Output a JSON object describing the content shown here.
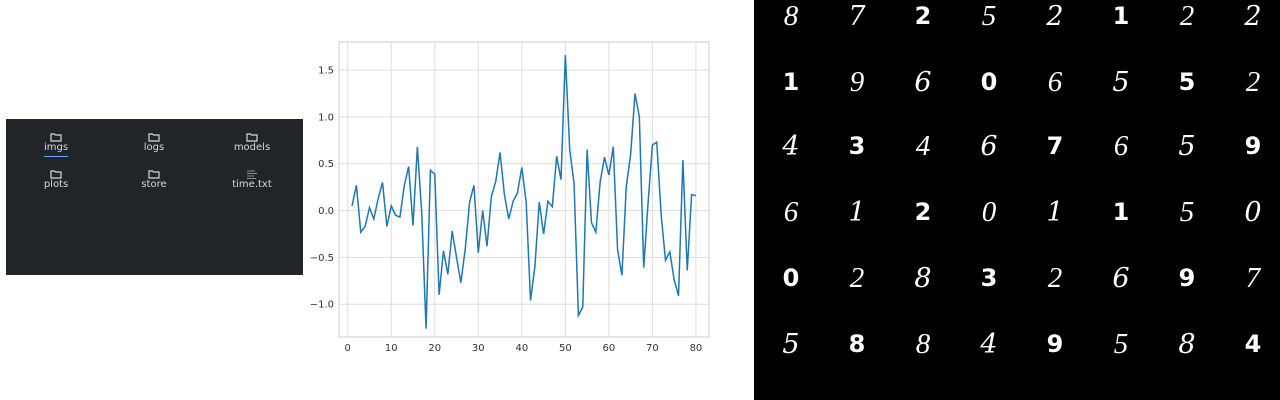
{
  "file_browser": {
    "items": [
      {
        "name": "imgs",
        "type": "folder",
        "icon": "folder-icon",
        "selected": true
      },
      {
        "name": "logs",
        "type": "folder",
        "icon": "folder-icon",
        "selected": false
      },
      {
        "name": "models",
        "type": "folder",
        "icon": "folder-icon",
        "selected": false
      },
      {
        "name": "plots",
        "type": "folder",
        "icon": "folder-icon",
        "selected": false
      },
      {
        "name": "store",
        "type": "folder",
        "icon": "folder-icon",
        "selected": false
      },
      {
        "name": "time.txt",
        "type": "file",
        "icon": "text-file-icon",
        "selected": false
      }
    ],
    "background": "#212529",
    "accent": "#6ea8fe"
  },
  "chart_data": {
    "type": "line",
    "x": [
      1,
      2,
      3,
      4,
      5,
      6,
      7,
      8,
      9,
      10,
      11,
      12,
      13,
      14,
      15,
      16,
      17,
      18,
      19,
      20,
      21,
      22,
      23,
      24,
      25,
      26,
      27,
      28,
      29,
      30,
      31,
      32,
      33,
      34,
      35,
      36,
      37,
      38,
      39,
      40,
      41,
      42,
      43,
      44,
      45,
      46,
      47,
      48,
      49,
      50,
      51,
      52,
      53,
      54,
      55,
      56,
      57,
      58,
      59,
      60,
      61,
      62,
      63,
      64,
      65,
      66,
      67,
      68,
      69,
      70,
      71,
      72,
      73,
      74,
      75,
      76,
      77,
      78,
      79,
      80
    ],
    "series": [
      {
        "values": [
          0.05,
          0.27,
          -0.23,
          -0.17,
          0.03,
          -0.09,
          0.13,
          0.3,
          -0.17,
          0.05,
          -0.05,
          -0.07,
          0.27,
          0.47,
          -0.16,
          0.68,
          -0.02,
          -1.26,
          0.43,
          0.39,
          -0.9,
          -0.43,
          -0.68,
          -0.22,
          -0.5,
          -0.77,
          -0.41,
          0.09,
          0.27,
          -0.45,
          0.0,
          -0.38,
          0.15,
          0.31,
          0.62,
          0.17,
          -0.09,
          0.1,
          0.19,
          0.46,
          0.09,
          -0.96,
          -0.6,
          0.09,
          -0.25,
          0.1,
          0.04,
          0.58,
          0.33,
          1.66,
          0.65,
          0.29,
          -1.12,
          -1.03,
          0.65,
          -0.13,
          -0.23,
          0.31,
          0.57,
          0.38,
          0.68,
          -0.42,
          -0.69,
          0.26,
          0.6,
          1.25,
          1.0,
          -0.61,
          0.08,
          0.7,
          0.73,
          -0.04,
          -0.53,
          -0.44,
          -0.74,
          -0.91,
          0.54,
          -0.64,
          0.17,
          0.16
        ],
        "color": "#1f77b4"
      }
    ],
    "title": "",
    "xlabel": "",
    "ylabel": "",
    "xlim": [
      -2,
      83
    ],
    "ylim": [
      -1.35,
      1.8
    ],
    "xticks": [
      0,
      10,
      20,
      30,
      40,
      50,
      60,
      70,
      80
    ],
    "yticks": [
      -1.0,
      -0.5,
      0.0,
      0.5,
      1.0,
      1.5
    ],
    "ytick_labels": [
      "−1.0",
      "−0.5",
      "0.0",
      "0.5",
      "1.0",
      "1.5"
    ],
    "grid": true,
    "legend": "none"
  },
  "digits": {
    "rows": [
      [
        "8",
        "7",
        "2",
        "5",
        "2",
        "1",
        "2",
        "2"
      ],
      [
        "1",
        "9",
        "6",
        "0",
        "6",
        "5",
        "5",
        "2"
      ],
      [
        "4",
        "3",
        "4",
        "6",
        "7",
        "6",
        "5",
        "9"
      ],
      [
        "6",
        "1",
        "2",
        "0",
        "1",
        "1",
        "5",
        "0"
      ],
      [
        "0",
        "2",
        "8",
        "3",
        "2",
        "6",
        "9",
        "7"
      ],
      [
        "5",
        "8",
        "8",
        "4",
        "9",
        "5",
        "8",
        "4"
      ]
    ]
  }
}
